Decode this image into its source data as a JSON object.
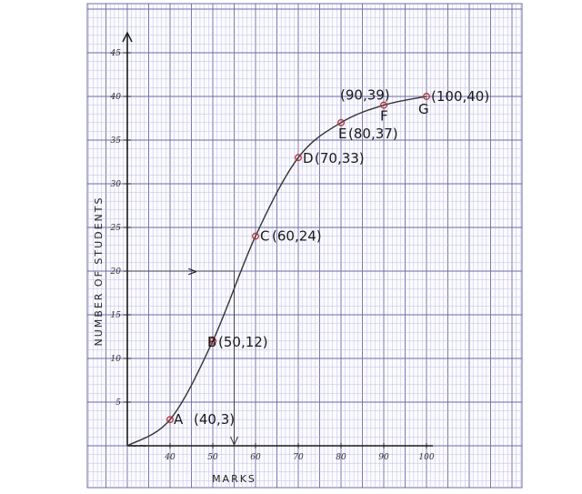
{
  "colors": {
    "paper": "#ffffff",
    "grid_minor": "#b9b6e0",
    "grid_major": "#6e6aa8",
    "ink": "#1a1a1a",
    "curve": "#333333",
    "point": "#b8323a"
  },
  "chart_data": {
    "type": "line",
    "title": "",
    "xlabel": "MARKS",
    "ylabel": "NUMBER OF STUDENTS",
    "xlim": [
      30,
      100
    ],
    "ylim": [
      0,
      45
    ],
    "x_ticks": [
      "40",
      "50",
      "60",
      "70",
      "80",
      "90",
      "100"
    ],
    "y_ticks": [
      "5",
      "10",
      "15",
      "20",
      "25",
      "30",
      "35",
      "40",
      "45"
    ],
    "axis_break_mark": "~~",
    "grid": true,
    "series": [
      {
        "x": [
          30,
          40,
          50,
          60,
          70,
          80,
          90,
          100
        ],
        "y": [
          0,
          3,
          12,
          24,
          33,
          37,
          39,
          40
        ]
      }
    ],
    "points": [
      {
        "letter": "A",
        "coord": "(40,3)",
        "x": 40,
        "y": 3
      },
      {
        "letter": "B",
        "coord": "(50,12)",
        "x": 50,
        "y": 12
      },
      {
        "letter": "C",
        "coord": "(60,24)",
        "x": 60,
        "y": 24
      },
      {
        "letter": "D",
        "coord": "(70,33)",
        "x": 70,
        "y": 33
      },
      {
        "letter": "E",
        "coord": "(80,37)",
        "x": 80,
        "y": 37
      },
      {
        "letter": "F",
        "coord": "(90,39)",
        "x": 90,
        "y": 39
      },
      {
        "letter": "G",
        "coord": "(100,40)",
        "x": 100,
        "y": 40
      }
    ],
    "annotations": {
      "median_y": 20,
      "median_x": 55,
      "arrow_right_glyph": ">"
    }
  }
}
